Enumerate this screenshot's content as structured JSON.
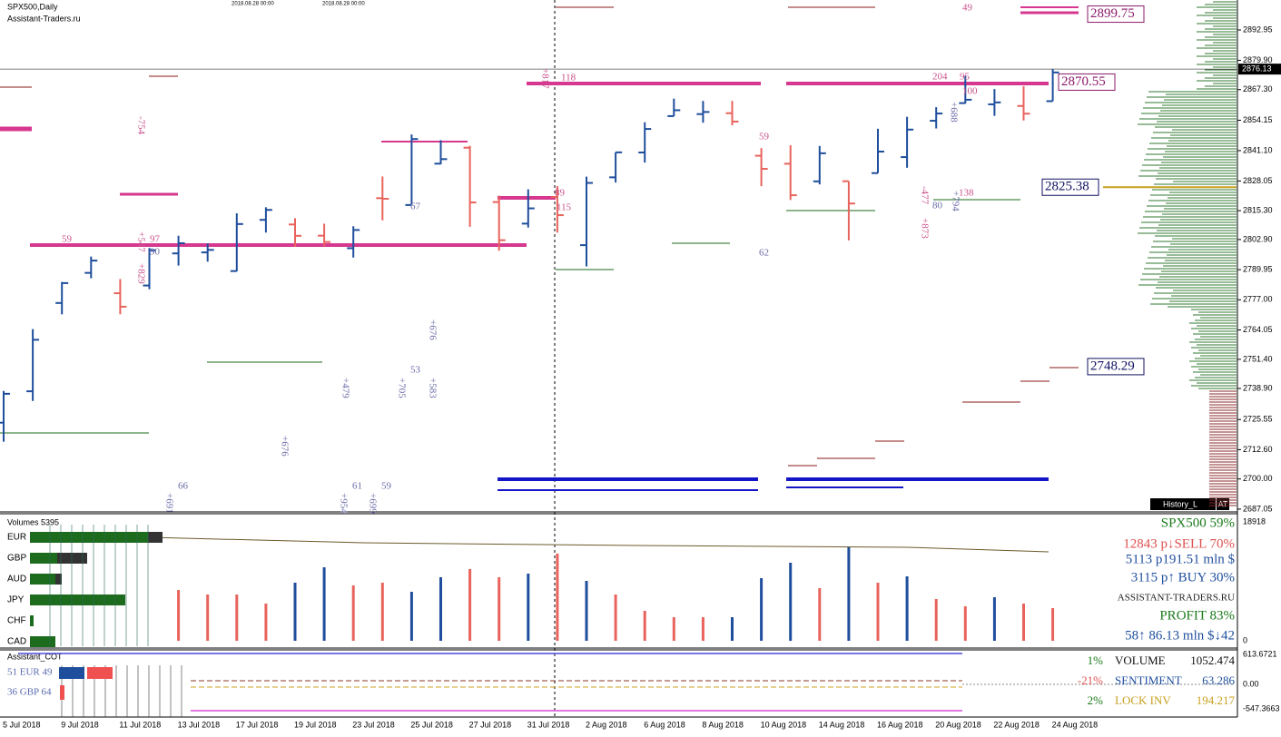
{
  "header": {
    "symbol": "SPX500,Daily",
    "site": "Assistant-Traders.ru",
    "marker_dates": [
      "2018.08.28 00:00",
      "2018.08.28 00:00"
    ]
  },
  "price_chart": {
    "ylim": [
      2686.24,
      2905.82
    ],
    "yticks": [
      2892.95,
      {
        "value": 2879.9,
        "label": "2879.90"
      },
      {
        "value": 2867.3,
        "label": "2867.30"
      },
      2854.15,
      {
        "value": 2841.1,
        "label": "2841.10"
      },
      2828.05,
      {
        "value": 2815.3,
        "label": "2815.30"
      },
      {
        "value": 2802.9,
        "label": "2802.90"
      },
      2789.95,
      {
        "value": 2777,
        "label": "2777.00"
      },
      2764.05,
      {
        "value": 2751.4,
        "label": "2751.40"
      },
      {
        "value": 2738.9,
        "label": "2738.90"
      },
      2725.55,
      {
        "value": 2712.6,
        "label": "2712.60"
      },
      {
        "value": 2700,
        "label": "2700.00"
      },
      2687.05
    ],
    "current_price": 2876.13,
    "level_labels": [
      2899.75,
      2870.55,
      2825.38,
      2748.29
    ],
    "up_color": "#1f4e9c",
    "down_color": "#e8635c",
    "bars": [
      [
        2724.19,
        2737.83,
        2716.02,
        2736.61
      ],
      [
        2737.68,
        2764.41,
        2733.52,
        2759.82
      ],
      [
        2775.62,
        2784.65,
        2770.73,
        2784.17
      ],
      [
        2788.56,
        2795.58,
        2786.24,
        2793.84
      ],
      [
        2779.82,
        2785.91,
        2770.77,
        2774.02
      ],
      [
        2783.14,
        2799.22,
        2781.53,
        2798.29
      ],
      [
        2796.93,
        2804.53,
        2791.69,
        2801.31
      ],
      [
        2797.36,
        2801.19,
        2793.39,
        2798.43
      ],
      [
        2789.34,
        2814.19,
        2789.24,
        2809.55
      ],
      [
        2811.35,
        2816.76,
        2805.89,
        2815.62
      ],
      [
        2809.37,
        2812.05,
        2799.77,
        2804.49
      ],
      [
        2804.55,
        2809.7,
        2800.01,
        2801.83
      ],
      [
        2799.17,
        2808.61,
        2795.14,
        2806.98
      ],
      [
        2820.68,
        2829.99,
        2811.12,
        2820.4
      ],
      [
        2817.73,
        2848.03,
        2817.73,
        2846.07
      ],
      [
        2835.49,
        2845.57,
        2835.26,
        2837.44
      ],
      [
        2842.35,
        2843.17,
        2808.34,
        2818.82
      ],
      [
        2819,
        2821.74,
        2798.11,
        2802.6
      ],
      [
        2809.73,
        2824.46,
        2808.06,
        2816.29
      ],
      [
        2821.17,
        2825.83,
        2805.85,
        2813.36
      ],
      [
        2800.48,
        2829.91,
        2791.34,
        2827.22
      ],
      [
        2829.62,
        2840.38,
        2827.37,
        2840.35
      ],
      [
        2840.29,
        2853.29,
        2835.98,
        2850.4
      ],
      [
        2855.92,
        2863.43,
        2855.92,
        2858.45
      ],
      [
        2856.79,
        2862.44,
        2853.09,
        2857.7
      ],
      [
        2857.19,
        2862.48,
        2851.98,
        2853.58
      ],
      [
        2838.9,
        2842.2,
        2825.81,
        2833.28
      ],
      [
        2835.46,
        2843.4,
        2819.88,
        2821.93
      ],
      [
        2827.88,
        2843.11,
        2826.58,
        2839.96
      ],
      [
        2827.95,
        2827.95,
        2802.49,
        2818.37
      ],
      [
        2831.44,
        2850.49,
        2831.44,
        2840.69
      ],
      [
        2838.32,
        2855.63,
        2833.73,
        2850.13
      ],
      [
        2853.93,
        2859.76,
        2850.62,
        2857.05
      ],
      [
        2861.51,
        2873.23,
        2861.32,
        2862.96
      ],
      [
        2860.99,
        2867.54,
        2856.05,
        2861.82
      ],
      [
        2860.29,
        2868.78,
        2854.03,
        2856.98
      ],
      [
        2862.35,
        2876.16,
        2862.35,
        2874.69
      ]
    ],
    "dates": [
      "5 Jul 2018",
      "9 Jul 2018",
      "11 Jul 2018",
      "13 Jul 2018",
      "17 Jul 2018",
      "19 Jul 2018",
      "23 Jul 2018",
      "25 Jul 2018",
      "27 Jul 2018",
      "31 Jul 2018",
      "2 Aug 2018",
      "6 Aug 2018",
      "8 Aug 2018",
      "10 Aug 2018",
      "14 Aug 2018",
      "16 Aug 2018",
      "20 Aug 2018",
      "22 Aug 2018",
      "24 Aug 2018"
    ],
    "annotations": [
      "59",
      "97",
      "-754",
      "+547",
      "+829",
      "90",
      "67",
      "89",
      "115",
      "+817",
      "118",
      "59",
      "62",
      "204",
      "95",
      "100",
      "+688",
      "-477",
      "138",
      "80",
      "+873",
      "+794",
      "66",
      "+691",
      "61",
      "+954",
      "+699",
      "59",
      "+676",
      "+479",
      "+705",
      "53",
      "+583",
      "+676",
      "49"
    ],
    "history_button": "History_L",
    "at_button": "AT"
  },
  "volume_panel": {
    "title": "Volumes 5395",
    "ylim": [
      0,
      18918
    ],
    "yticks": [
      18918,
      0
    ],
    "volumes": [
      null,
      null,
      null,
      null,
      null,
      null,
      8087,
      7365,
      7365,
      5921,
      9243,
      11698,
      8809,
      9243,
      7798,
      10109,
      11409,
      10109,
      10687,
      13864,
      9531,
      7365,
      4766,
      3755,
      3755,
      3755,
      9965,
      12420,
      8376,
      14875,
      9243,
      10254,
      6643,
      5488,
      6932,
      5921,
      5199
    ],
    "colors": [
      null,
      null,
      null,
      null,
      null,
      null,
      "#e8635c",
      "#e8635c",
      "#e8635c",
      "#e8635c",
      "#1f4e9c",
      "#1f4e9c",
      "#e8635c",
      "#e8635c",
      "#1f4e9c",
      "#1f4e9c",
      "#e8635c",
      "#e8635c",
      "#1f4e9c",
      "#e8635c",
      "#1f4e9c",
      "#e8635c",
      "#e8635c",
      "#e8635c",
      "#e8635c",
      "#1f4e9c",
      "#1f4e9c",
      "#1f4e9c",
      "#e8635c",
      "#1f4e9c",
      "#e8635c",
      "#1f4e9c",
      "#e8635c",
      "#e8635c",
      "#1f4e9c",
      "#e8635c",
      "#e8635c"
    ],
    "currencies": [
      "EUR",
      "GBP",
      "AUD",
      "JPY",
      "CHF",
      "CAD"
    ],
    "stats": [
      {
        "text": "SPX500 59%",
        "color": "#1a7a1a"
      },
      {
        "text": "12843 p↓SELL 70%",
        "color": "#e05050"
      },
      {
        "text": "5113 p191.51 mln $",
        "color": "#1f4e9c"
      },
      {
        "text": "3115 p↑ BUY 30%",
        "color": "#1f4e9c"
      },
      {
        "text": "ASSISTANT-TRADERS.RU",
        "color": "#222222"
      },
      {
        "text": "PROFIT 83%",
        "color": "#1a7a1a"
      },
      {
        "text": "58↑ 86.13 mln $↓42",
        "color": "#1f4e9c"
      }
    ]
  },
  "cot_panel": {
    "title": "Assistant_COT",
    "pairs": [
      "51 EUR 49",
      "36 GBP 64"
    ],
    "rows": [
      {
        "pct": "1%",
        "label": "VOLUME",
        "value": 1052.474,
        "color": "#1a7a1a"
      },
      {
        "pct": "-21%",
        "label": "SENTIMENT",
        "value": 63.286,
        "color": "#e05050"
      },
      {
        "pct": "2%",
        "label": "LOCK INV",
        "value": 194.217,
        "color": "#1a7a1a"
      }
    ],
    "yticks": [
      613.6721,
      {
        "value": 0,
        "label": "0.00"
      },
      -547.3663
    ]
  }
}
